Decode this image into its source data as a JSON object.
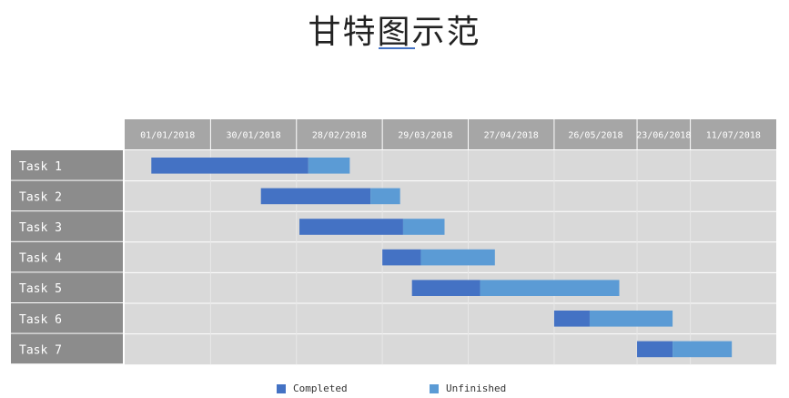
{
  "title": "甘特图示范",
  "colors": {
    "completed": "#4472c4",
    "unfinished": "#5b9bd5",
    "header_bg": "#a6a6a6",
    "label_bg": "#8c8c8c",
    "grid_bg": "#d9d9d9"
  },
  "chart_data": {
    "type": "bar",
    "orientation": "horizontal-stacked-gantt",
    "categories": [
      "Task 1",
      "Task 2",
      "Task 3",
      "Task 4",
      "Task 5",
      "Task 6",
      "Task 7"
    ],
    "x_tick_labels": [
      "01/01/2018",
      "30/01/2018",
      "28/02/2018",
      "29/03/2018",
      "27/04/2018",
      "26/05/2018",
      "23/06/2018",
      "11/07/2018"
    ],
    "x_ticks": [
      "2018-01-01",
      "2018-01-30",
      "2018-02-28",
      "2018-03-29",
      "2018-04-27",
      "2018-05-26",
      "2018-06-23",
      "2018-07-11"
    ],
    "xlim": [
      "2018-01-01",
      "2018-08-09"
    ],
    "tasks": [
      {
        "name": "Task 1",
        "start": "2018-01-10",
        "completed_end": "2018-03-04",
        "end": "2018-03-18"
      },
      {
        "name": "Task 2",
        "start": "2018-02-16",
        "completed_end": "2018-03-25",
        "end": "2018-04-04"
      },
      {
        "name": "Task 3",
        "start": "2018-03-01",
        "completed_end": "2018-04-05",
        "end": "2018-04-19"
      },
      {
        "name": "Task 4",
        "start": "2018-03-29",
        "completed_end": "2018-04-11",
        "end": "2018-05-06"
      },
      {
        "name": "Task 5",
        "start": "2018-04-08",
        "completed_end": "2018-05-01",
        "end": "2018-06-17"
      },
      {
        "name": "Task 6",
        "start": "2018-05-26",
        "completed_end": "2018-06-07",
        "end": "2018-07-05"
      },
      {
        "name": "Task 7",
        "start": "2018-06-23",
        "completed_end": "2018-07-05",
        "end": "2018-07-25"
      }
    ],
    "legend": {
      "position": "bottom",
      "items": [
        "Completed",
        "Unfinished"
      ]
    }
  }
}
